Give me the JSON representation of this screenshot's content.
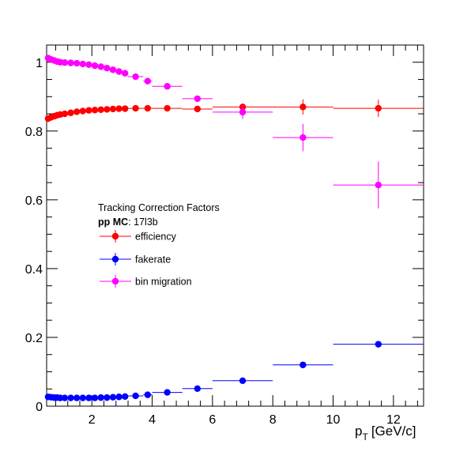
{
  "chart_data": {
    "type": "scatter",
    "title": "",
    "xlabel": "p",
    "xlabel_sub": "T",
    "xlabel_units": "[GeV/c]",
    "ylabel": "",
    "xlim": [
      0.5,
      13.0
    ],
    "ylim": [
      0,
      1.05
    ],
    "x_major_ticks": [
      2,
      4,
      6,
      8,
      10,
      12
    ],
    "y_major_ticks": [
      0,
      0.2,
      0.4,
      0.6,
      0.8,
      1.0
    ],
    "x_tick_labels": [
      "2",
      "4",
      "6",
      "8",
      "10",
      "12"
    ],
    "y_tick_labels": [
      "0",
      "0.2",
      "0.4",
      "0.6",
      "0.8",
      "1"
    ],
    "grid": false,
    "legend": {
      "placement": "center-left",
      "title_line1": "Tracking Correction Factors",
      "title_line2_bold": "pp MC",
      "title_line2_rest": ": 17l3b",
      "entries": [
        "efficiency",
        "fakerate",
        "bin migration"
      ]
    },
    "series": [
      {
        "name": "efficiency",
        "color": "#ff0000",
        "points": [
          {
            "x": 0.55,
            "xerr": 0.05,
            "y": 0.836,
            "yerr": 0.002
          },
          {
            "x": 0.65,
            "xerr": 0.05,
            "y": 0.84,
            "yerr": 0.002
          },
          {
            "x": 0.75,
            "xerr": 0.05,
            "y": 0.843,
            "yerr": 0.002
          },
          {
            "x": 0.85,
            "xerr": 0.05,
            "y": 0.846,
            "yerr": 0.002
          },
          {
            "x": 0.95,
            "xerr": 0.05,
            "y": 0.848,
            "yerr": 0.002
          },
          {
            "x": 1.1,
            "xerr": 0.1,
            "y": 0.85,
            "yerr": 0.002
          },
          {
            "x": 1.3,
            "xerr": 0.1,
            "y": 0.853,
            "yerr": 0.002
          },
          {
            "x": 1.5,
            "xerr": 0.1,
            "y": 0.856,
            "yerr": 0.002
          },
          {
            "x": 1.7,
            "xerr": 0.1,
            "y": 0.858,
            "yerr": 0.002
          },
          {
            "x": 1.9,
            "xerr": 0.1,
            "y": 0.86,
            "yerr": 0.002
          },
          {
            "x": 2.1,
            "xerr": 0.1,
            "y": 0.861,
            "yerr": 0.002
          },
          {
            "x": 2.3,
            "xerr": 0.1,
            "y": 0.862,
            "yerr": 0.002
          },
          {
            "x": 2.5,
            "xerr": 0.1,
            "y": 0.863,
            "yerr": 0.002
          },
          {
            "x": 2.7,
            "xerr": 0.1,
            "y": 0.864,
            "yerr": 0.002
          },
          {
            "x": 2.9,
            "xerr": 0.1,
            "y": 0.865,
            "yerr": 0.002
          },
          {
            "x": 3.1,
            "xerr": 0.1,
            "y": 0.865,
            "yerr": 0.003
          },
          {
            "x": 3.45,
            "xerr": 0.25,
            "y": 0.866,
            "yerr": 0.003
          },
          {
            "x": 3.85,
            "xerr": 0.15,
            "y": 0.866,
            "yerr": 0.003
          },
          {
            "x": 4.5,
            "xerr": 0.5,
            "y": 0.866,
            "yerr": 0.004
          },
          {
            "x": 5.5,
            "xerr": 0.5,
            "y": 0.864,
            "yerr": 0.005
          },
          {
            "x": 7.0,
            "xerr": 1.0,
            "y": 0.87,
            "yerr": 0.01
          },
          {
            "x": 9.0,
            "xerr": 1.0,
            "y": 0.87,
            "yerr": 0.022
          },
          {
            "x": 11.5,
            "xerr": 1.5,
            "y": 0.866,
            "yerr": 0.025
          }
        ]
      },
      {
        "name": "fakerate",
        "color": "#0000ff",
        "points": [
          {
            "x": 0.55,
            "xerr": 0.05,
            "y": 0.027,
            "yerr": 0.001
          },
          {
            "x": 0.65,
            "xerr": 0.05,
            "y": 0.026,
            "yerr": 0.001
          },
          {
            "x": 0.75,
            "xerr": 0.05,
            "y": 0.025,
            "yerr": 0.001
          },
          {
            "x": 0.85,
            "xerr": 0.05,
            "y": 0.025,
            "yerr": 0.001
          },
          {
            "x": 0.95,
            "xerr": 0.05,
            "y": 0.024,
            "yerr": 0.001
          },
          {
            "x": 1.1,
            "xerr": 0.1,
            "y": 0.024,
            "yerr": 0.001
          },
          {
            "x": 1.3,
            "xerr": 0.1,
            "y": 0.024,
            "yerr": 0.001
          },
          {
            "x": 1.5,
            "xerr": 0.1,
            "y": 0.024,
            "yerr": 0.001
          },
          {
            "x": 1.7,
            "xerr": 0.1,
            "y": 0.024,
            "yerr": 0.001
          },
          {
            "x": 1.9,
            "xerr": 0.1,
            "y": 0.024,
            "yerr": 0.001
          },
          {
            "x": 2.1,
            "xerr": 0.1,
            "y": 0.024,
            "yerr": 0.001
          },
          {
            "x": 2.3,
            "xerr": 0.1,
            "y": 0.025,
            "yerr": 0.001
          },
          {
            "x": 2.5,
            "xerr": 0.1,
            "y": 0.025,
            "yerr": 0.001
          },
          {
            "x": 2.7,
            "xerr": 0.1,
            "y": 0.026,
            "yerr": 0.001
          },
          {
            "x": 2.9,
            "xerr": 0.1,
            "y": 0.027,
            "yerr": 0.001
          },
          {
            "x": 3.1,
            "xerr": 0.1,
            "y": 0.028,
            "yerr": 0.001
          },
          {
            "x": 3.45,
            "xerr": 0.25,
            "y": 0.03,
            "yerr": 0.001
          },
          {
            "x": 3.85,
            "xerr": 0.15,
            "y": 0.033,
            "yerr": 0.001
          },
          {
            "x": 4.5,
            "xerr": 0.5,
            "y": 0.04,
            "yerr": 0.002
          },
          {
            "x": 5.5,
            "xerr": 0.5,
            "y": 0.051,
            "yerr": 0.002
          },
          {
            "x": 7.0,
            "xerr": 1.0,
            "y": 0.074,
            "yerr": 0.003
          },
          {
            "x": 9.0,
            "xerr": 1.0,
            "y": 0.12,
            "yerr": 0.004
          },
          {
            "x": 11.5,
            "xerr": 1.5,
            "y": 0.18,
            "yerr": 0.005
          }
        ]
      },
      {
        "name": "bin migration",
        "color": "#ff00ff",
        "points": [
          {
            "x": 0.55,
            "xerr": 0.05,
            "y": 1.012,
            "yerr": 0.002
          },
          {
            "x": 0.65,
            "xerr": 0.05,
            "y": 1.008,
            "yerr": 0.002
          },
          {
            "x": 0.75,
            "xerr": 0.05,
            "y": 1.005,
            "yerr": 0.002
          },
          {
            "x": 0.85,
            "xerr": 0.05,
            "y": 1.002,
            "yerr": 0.002
          },
          {
            "x": 0.95,
            "xerr": 0.05,
            "y": 1.0,
            "yerr": 0.002
          },
          {
            "x": 1.1,
            "xerr": 0.1,
            "y": 0.999,
            "yerr": 0.002
          },
          {
            "x": 1.3,
            "xerr": 0.1,
            "y": 0.998,
            "yerr": 0.002
          },
          {
            "x": 1.5,
            "xerr": 0.1,
            "y": 0.997,
            "yerr": 0.002
          },
          {
            "x": 1.7,
            "xerr": 0.1,
            "y": 0.995,
            "yerr": 0.002
          },
          {
            "x": 1.9,
            "xerr": 0.1,
            "y": 0.993,
            "yerr": 0.002
          },
          {
            "x": 2.1,
            "xerr": 0.1,
            "y": 0.99,
            "yerr": 0.002
          },
          {
            "x": 2.3,
            "xerr": 0.1,
            "y": 0.987,
            "yerr": 0.002
          },
          {
            "x": 2.5,
            "xerr": 0.1,
            "y": 0.983,
            "yerr": 0.002
          },
          {
            "x": 2.7,
            "xerr": 0.1,
            "y": 0.978,
            "yerr": 0.002
          },
          {
            "x": 2.9,
            "xerr": 0.1,
            "y": 0.973,
            "yerr": 0.003
          },
          {
            "x": 3.1,
            "xerr": 0.1,
            "y": 0.968,
            "yerr": 0.003
          },
          {
            "x": 3.45,
            "xerr": 0.25,
            "y": 0.958,
            "yerr": 0.003
          },
          {
            "x": 3.85,
            "xerr": 0.15,
            "y": 0.945,
            "yerr": 0.004
          },
          {
            "x": 4.5,
            "xerr": 0.5,
            "y": 0.93,
            "yerr": 0.005
          },
          {
            "x": 5.5,
            "xerr": 0.5,
            "y": 0.894,
            "yerr": 0.008
          },
          {
            "x": 7.0,
            "xerr": 1.0,
            "y": 0.855,
            "yerr": 0.02
          },
          {
            "x": 9.0,
            "xerr": 1.0,
            "y": 0.781,
            "yerr": 0.04
          },
          {
            "x": 11.5,
            "xerr": 1.5,
            "y": 0.643,
            "yerr": 0.068
          }
        ]
      }
    ]
  }
}
